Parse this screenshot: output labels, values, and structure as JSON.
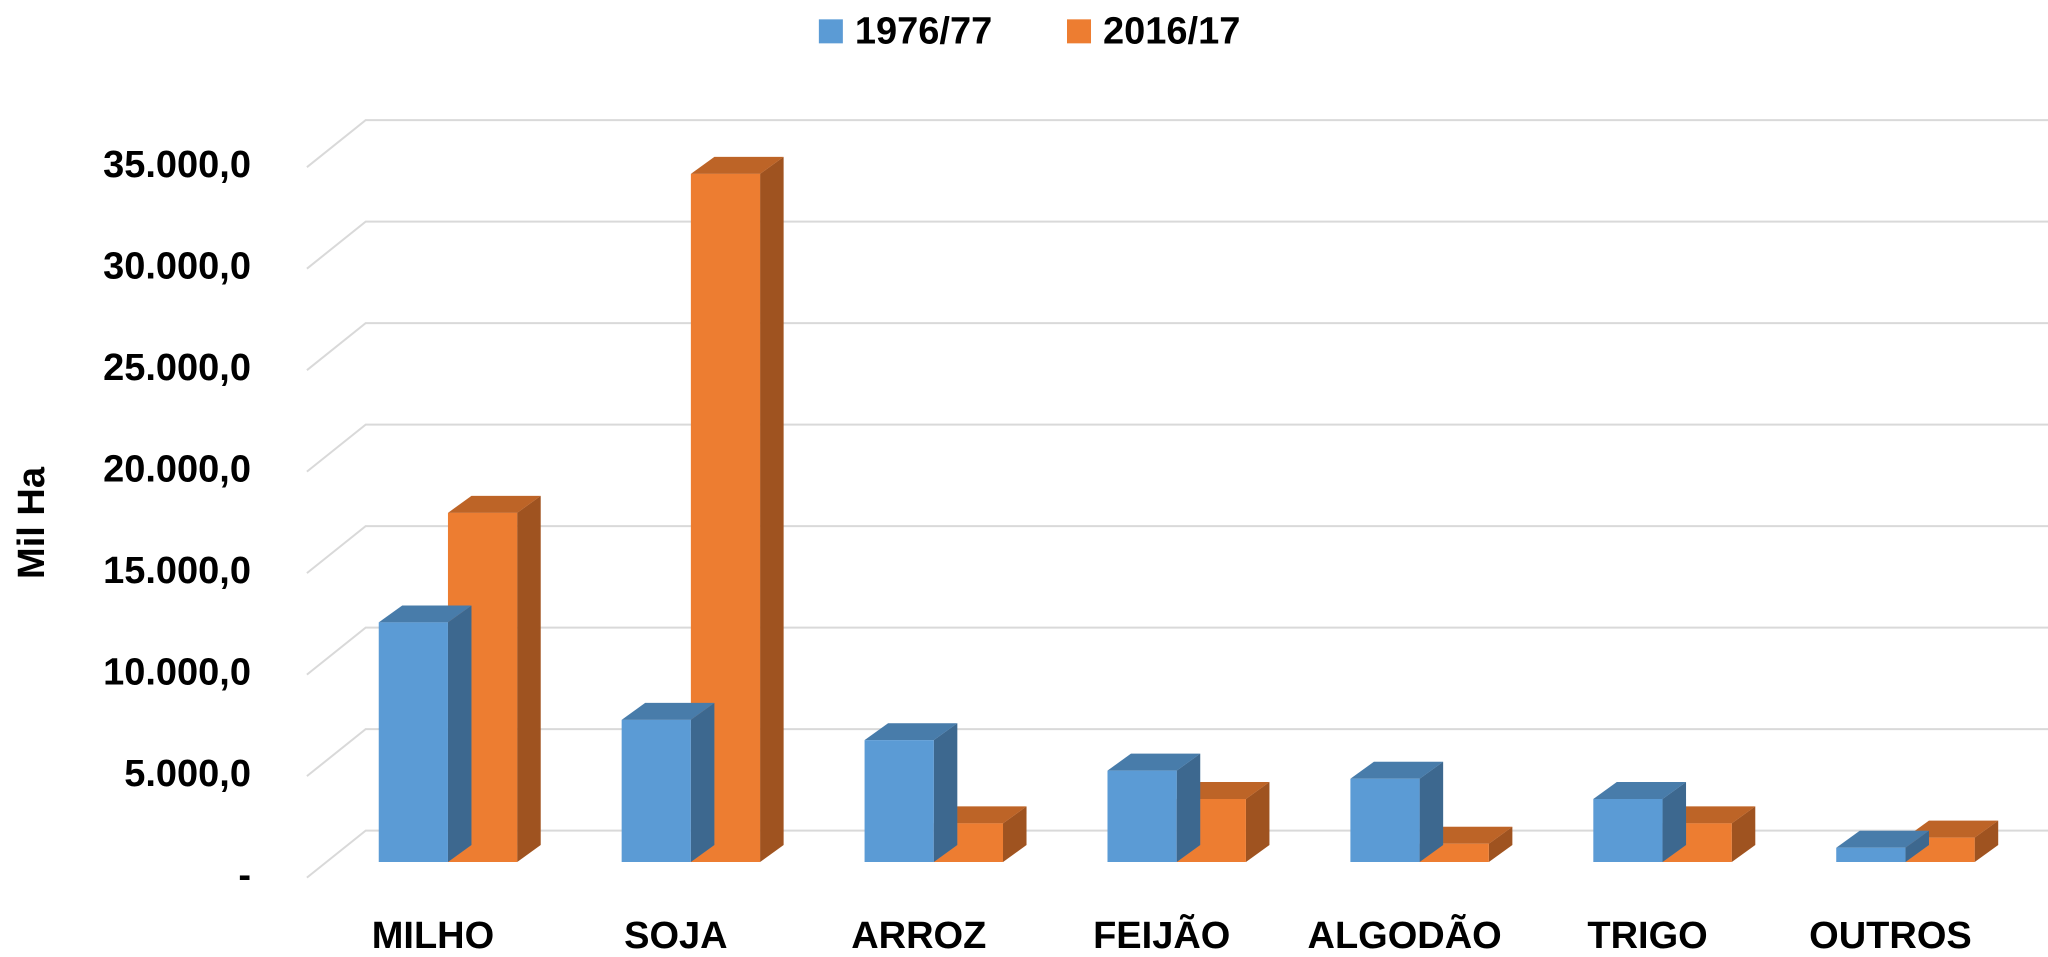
{
  "chart_data": {
    "type": "bar3d",
    "ylabel": "Mil Ha",
    "categories": [
      "MILHO",
      "SOJA",
      "ARROZ",
      "FEIJÃO",
      "ALGODÃO",
      "TRIGO",
      "OUTROS"
    ],
    "series": [
      {
        "name": "1976/77",
        "color": "#5b9bd5",
        "values": [
          11800,
          7000,
          6000,
          4500,
          4100,
          3100,
          700
        ]
      },
      {
        "name": "2016/17",
        "color": "#ed7d31",
        "values": [
          17200,
          33900,
          1900,
          3100,
          900,
          1900,
          1200
        ]
      }
    ],
    "ylim": [
      0,
      35000
    ],
    "yticks": [
      {
        "value": 0,
        "label": "-"
      },
      {
        "value": 5000,
        "label": "5.000,0"
      },
      {
        "value": 10000,
        "label": "10.000,0"
      },
      {
        "value": 15000,
        "label": "15.000,0"
      },
      {
        "value": 20000,
        "label": "20.000,0"
      },
      {
        "value": 25000,
        "label": "25.000,0"
      },
      {
        "value": 30000,
        "label": "30.000,0"
      },
      {
        "value": 35000,
        "label": "35.000,0"
      }
    ],
    "grid": true,
    "legend": "top"
  }
}
